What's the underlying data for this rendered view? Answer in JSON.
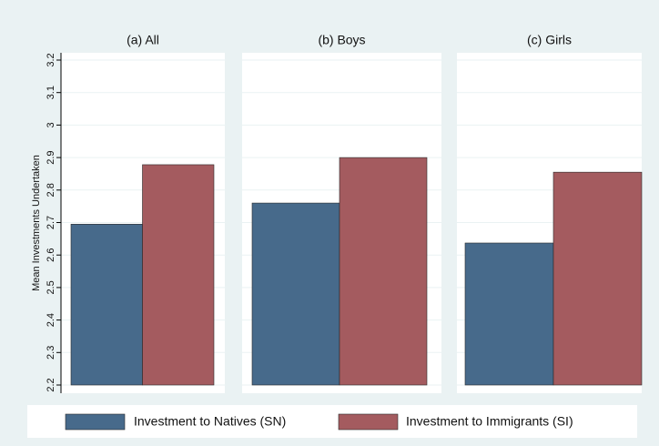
{
  "chart_data": {
    "type": "bar",
    "ylabel": "Mean Investments Undertaken",
    "categories": [
      "(a) All",
      "(b) Boys",
      "(c) Girls"
    ],
    "series": [
      {
        "name": "Investment to Natives (SN)",
        "color": "#476a8b",
        "values": [
          2.695,
          2.76,
          2.637
        ]
      },
      {
        "name": "Investment to Immigrants (SI)",
        "color": "#a45b5f",
        "values": [
          2.878,
          2.9,
          2.855
        ]
      }
    ],
    "ylim": [
      2.2,
      3.2
    ],
    "yticks": [
      2.2,
      2.3,
      2.4,
      2.5,
      2.6,
      2.7,
      2.8,
      2.9,
      3,
      3.1,
      3.2
    ],
    "grid": true
  }
}
